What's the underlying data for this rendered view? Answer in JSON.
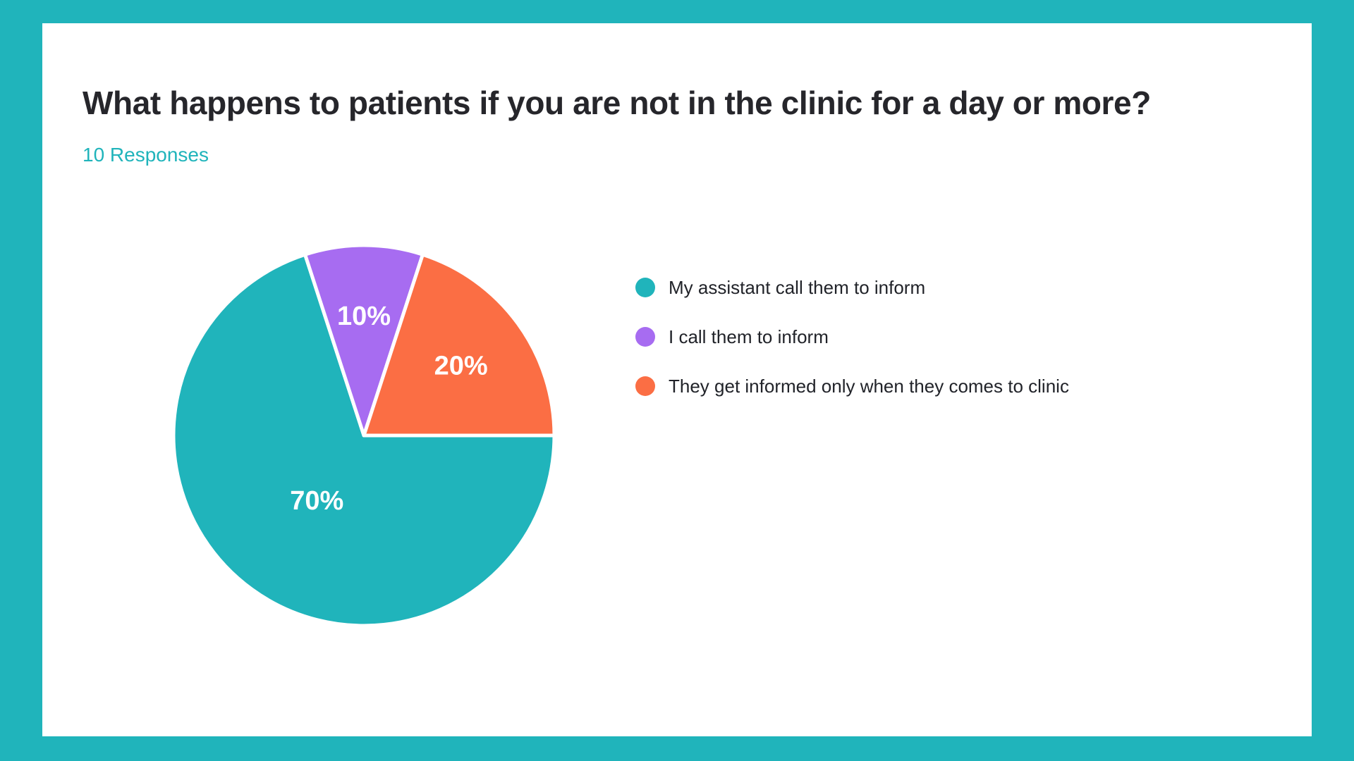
{
  "page": {
    "background_color": "#20B4BB",
    "card_color": "#FFFFFF",
    "accent_color": "#20B4BB"
  },
  "header": {
    "title": "What happens to patients if you are not in the clinic for a day or more?",
    "responses_label": "10 Responses",
    "responses_count": 10
  },
  "chart_data": {
    "type": "pie",
    "title": "What happens to patients if you are not in the clinic for a day or more?",
    "subtitle": "10 Responses",
    "unit": "%",
    "total": 100,
    "slices": [
      {
        "label": "My assistant call them to inform",
        "value": 70,
        "display": "70%",
        "color": "#20B4BB"
      },
      {
        "label": "I call them to inform",
        "value": 10,
        "display": "10%",
        "color": "#A76CF1"
      },
      {
        "label": "They get informed only when they comes to clinic",
        "value": 20,
        "display": "20%",
        "color": "#FB6E44"
      }
    ],
    "layout": {
      "start_angle_deg": 0,
      "direction": "clockwise",
      "slice_gap_color": "#FFFFFF",
      "slice_label_color": "#FFFFFF",
      "legend_position": "right",
      "grid": false
    }
  }
}
